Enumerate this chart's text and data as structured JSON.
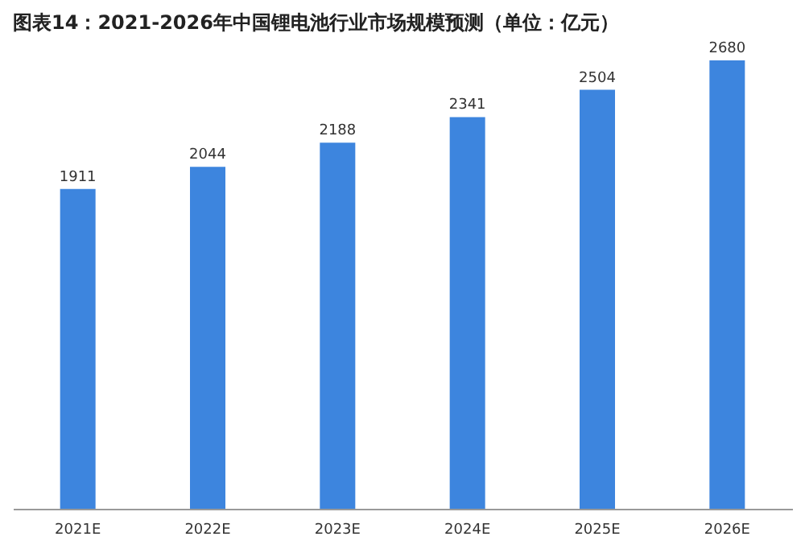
{
  "chart_data": {
    "type": "bar",
    "title": "图表14：2021-2026年中国锂电池行业市场规模预测（单位：亿元）",
    "categories": [
      "2021E",
      "2022E",
      "2023E",
      "2024E",
      "2025E",
      "2026E"
    ],
    "values": [
      1911,
      2044,
      2188,
      2341,
      2504,
      2680
    ],
    "color": "#3d85de",
    "data_labels": true,
    "tick_labels": "x"
  }
}
